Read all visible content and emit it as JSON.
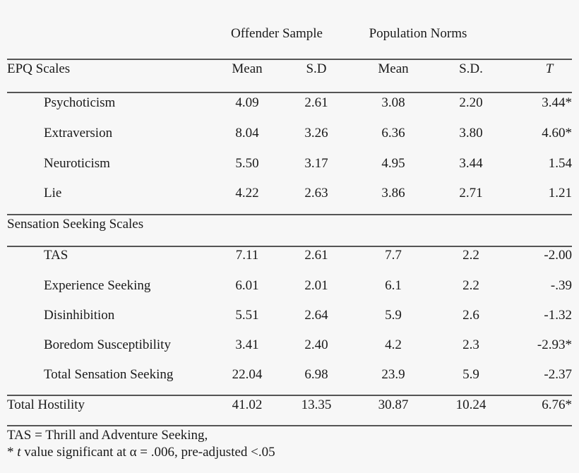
{
  "header": {
    "group_offender": "Offender Sample",
    "group_population": "Population Norms",
    "col_label": "EPQ Scales",
    "col_mean1": "Mean",
    "col_sd1": "S.D",
    "col_mean2": "Mean",
    "col_sd2": "S.D.",
    "col_t": "T"
  },
  "epq_rows": [
    {
      "label": "Psychoticism",
      "m1": "4.09",
      "sd1": "2.61",
      "m2": "3.08",
      "sd2": "2.20",
      "t": "3.44*"
    },
    {
      "label": "Extraversion",
      "m1": "8.04",
      "sd1": "3.26",
      "m2": "6.36",
      "sd2": "3.80",
      "t": "4.60*"
    },
    {
      "label": "Neuroticism",
      "m1": "5.50",
      "sd1": "3.17",
      "m2": "4.95",
      "sd2": "3.44",
      "t": "1.54"
    },
    {
      "label": "Lie",
      "m1": "4.22",
      "sd1": "2.63",
      "m2": "3.86",
      "sd2": "2.71",
      "t": "1.21"
    }
  ],
  "sss_heading": "Sensation Seeking Scales",
  "sss_rows": [
    {
      "label": "TAS",
      "m1": "7.11",
      "sd1": "2.61",
      "m2": "7.7",
      "sd2": "2.2",
      "t": "-2.00"
    },
    {
      "label": "Experience Seeking",
      "m1": "6.01",
      "sd1": "2.01",
      "m2": "6.1",
      "sd2": "2.2",
      "t": "-.39"
    },
    {
      "label": "Disinhibition",
      "m1": "5.51",
      "sd1": "2.64",
      "m2": "5.9",
      "sd2": "2.6",
      "t": "-1.32"
    },
    {
      "label": "Boredom Susceptibility",
      "m1": "3.41",
      "sd1": "2.40",
      "m2": "4.2",
      "sd2": "2.3",
      "t": "-2.93*"
    },
    {
      "label": "Total Sensation Seeking",
      "m1": "22.04",
      "sd1": "6.98",
      "m2": "23.9",
      "sd2": "5.9",
      "t": "-2.37"
    }
  ],
  "total_row": {
    "label": "Total Hostility",
    "m1": "41.02",
    "sd1": "13.35",
    "m2": "30.87",
    "sd2": "10.24",
    "t": "6.76*"
  },
  "footnotes": {
    "line1": "TAS = Thrill and Adventure Seeking,",
    "line2_prefix": "* ",
    "line2_italic": "t",
    "line2_rest": " value significant at α = .006, pre-adjusted <.05"
  }
}
